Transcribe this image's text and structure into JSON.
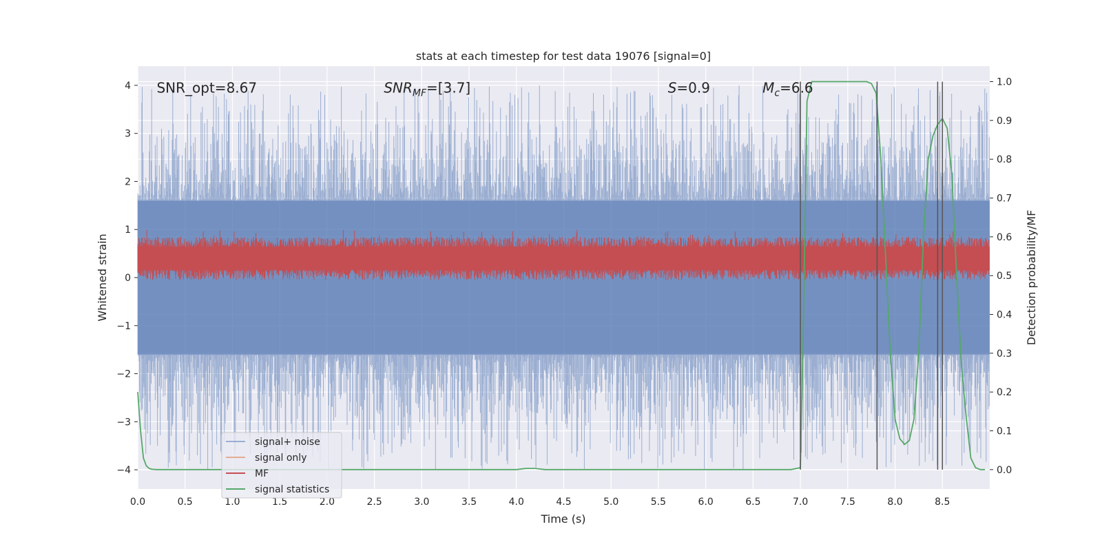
{
  "chart_data": {
    "type": "line",
    "title": "stats at each timestep for test data 19076 [signal=0]",
    "xlabel": "Time (s)",
    "ylabel": "Whitened strain",
    "ylabel_right": "Detection probability/MF",
    "xlim": [
      0.0,
      9.0
    ],
    "ylim": [
      -4.4,
      4.4
    ],
    "ylim_right": [
      -0.05,
      1.04
    ],
    "x_ticks": [
      0.0,
      0.5,
      1.0,
      1.5,
      2.0,
      2.5,
      3.0,
      3.5,
      4.0,
      4.5,
      5.0,
      5.5,
      6.0,
      6.5,
      7.0,
      7.5,
      8.0,
      8.5
    ],
    "x_tick_labels": [
      "0.0",
      "0.5",
      "1.0",
      "1.5",
      "2.0",
      "2.5",
      "3.0",
      "3.5",
      "4.0",
      "4.5",
      "5.0",
      "5.5",
      "6.0",
      "6.5",
      "7.0",
      "7.5",
      "8.0",
      "8.5"
    ],
    "y_ticks": [
      -4,
      -3,
      -2,
      -1,
      0,
      1,
      2,
      3,
      4
    ],
    "y_tick_labels": [
      "−4",
      "−3",
      "−2",
      "−1",
      "0",
      "1",
      "2",
      "3",
      "4"
    ],
    "y_right_ticks": [
      0.0,
      0.1,
      0.2,
      0.3,
      0.4,
      0.5,
      0.6,
      0.7,
      0.8,
      0.9,
      1.0
    ],
    "y_right_tick_labels": [
      "0.0",
      "0.1",
      "0.2",
      "0.3",
      "0.4",
      "0.5",
      "0.6",
      "0.7",
      "0.8",
      "0.9",
      "1.0"
    ],
    "grid": true,
    "legend_position": "lower-left",
    "annotations": [
      {
        "text": "SNR_opt=8.67",
        "x": 0.2,
        "y": 3.95
      },
      {
        "text": "SNR_MF=[3.7]",
        "x": 2.6,
        "y": 3.95
      },
      {
        "text": "S=0.9",
        "x": 5.6,
        "y": 3.95
      },
      {
        "text": "M_c=6.6",
        "x": 6.6,
        "y": 3.95
      }
    ],
    "vertical_lines": [
      7.0,
      7.81,
      8.45,
      8.5
    ],
    "vertical_line_range": [
      0.0,
      1.0
    ],
    "series": [
      {
        "name": "signal+ noise",
        "color": "#4c72b0",
        "alpha": 0.5,
        "axis": "left",
        "kind": "noise-band",
        "band": [
          -1.6,
          1.6
        ],
        "spike_range": [
          -4.0,
          4.0
        ]
      },
      {
        "name": "signal only",
        "color": "#dd8452",
        "alpha": 0.6,
        "axis": "left",
        "kind": "hidden"
      },
      {
        "name": "MF",
        "color": "#c44e52",
        "axis": "left",
        "kind": "mf-band",
        "band": [
          0.05,
          0.75
        ],
        "spike_range": [
          0.0,
          0.95
        ]
      },
      {
        "name": "signal statistics",
        "color": "#55a868",
        "axis": "right",
        "x": [
          0.0,
          0.03,
          0.06,
          0.09,
          0.12,
          0.15,
          0.2,
          0.3,
          1.0,
          2.0,
          3.0,
          3.8,
          4.0,
          4.1,
          4.2,
          4.3,
          5.0,
          6.0,
          6.9,
          7.0,
          7.03,
          7.07,
          7.12,
          7.5,
          7.7,
          7.75,
          7.8,
          7.85,
          7.9,
          7.95,
          8.0,
          8.05,
          8.1,
          8.15,
          8.2,
          8.25,
          8.3,
          8.35,
          8.4,
          8.45,
          8.5,
          8.55,
          8.6,
          8.65,
          8.7,
          8.75,
          8.8,
          8.85,
          8.9,
          8.95
        ],
        "y": [
          0.2,
          0.1,
          0.03,
          0.01,
          0.003,
          0.001,
          0.0,
          0.0,
          0.0,
          0.0,
          0.0,
          0.0,
          0.0,
          0.003,
          0.003,
          0.0,
          0.0,
          0.0,
          0.0,
          0.005,
          0.35,
          0.95,
          1.0,
          1.0,
          1.0,
          0.995,
          0.97,
          0.8,
          0.55,
          0.3,
          0.13,
          0.08,
          0.065,
          0.075,
          0.13,
          0.3,
          0.6,
          0.8,
          0.86,
          0.89,
          0.905,
          0.88,
          0.76,
          0.5,
          0.27,
          0.14,
          0.03,
          0.005,
          0.0,
          0.0
        ]
      }
    ]
  }
}
